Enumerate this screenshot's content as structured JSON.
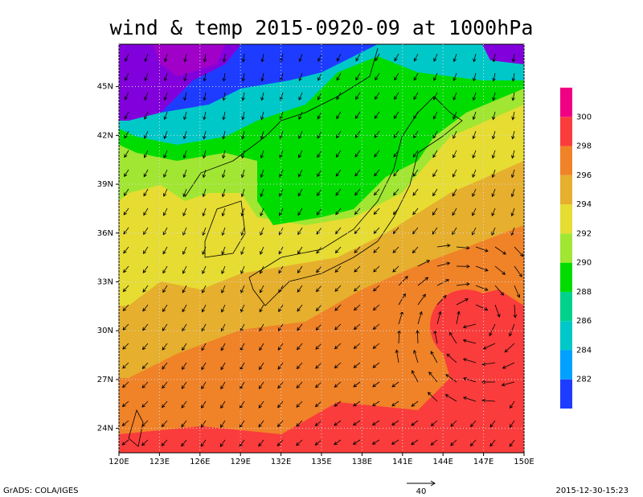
{
  "chart_data": {
    "type": "map",
    "title": "wind & temp 2015-0920-09 at 1000hPa",
    "xlim": [
      120,
      150
    ],
    "xticks": [
      {
        "value": 120,
        "label": "120E"
      },
      {
        "value": 123,
        "label": "123E"
      },
      {
        "value": 126,
        "label": "126E"
      },
      {
        "value": 129,
        "label": "129E"
      },
      {
        "value": 132,
        "label": "132E"
      },
      {
        "value": 135,
        "label": "135E"
      },
      {
        "value": 138,
        "label": "138E"
      },
      {
        "value": 141,
        "label": "141E"
      },
      {
        "value": 144,
        "label": "144E"
      },
      {
        "value": 147,
        "label": "147E"
      },
      {
        "value": 150,
        "label": "150E"
      }
    ],
    "ylim": [
      22.5,
      47.6
    ],
    "yticks": [
      {
        "value": 24,
        "label": "24N"
      },
      {
        "value": 27,
        "label": "27N"
      },
      {
        "value": 30,
        "label": "30N"
      },
      {
        "value": 33,
        "label": "33N"
      },
      {
        "value": 36,
        "label": "36N"
      },
      {
        "value": 39,
        "label": "39N"
      },
      {
        "value": 42,
        "label": "42N"
      },
      {
        "value": 45,
        "label": "45N"
      }
    ],
    "grid": true,
    "colorbar": {
      "levels": [
        282,
        284,
        286,
        288,
        290,
        292,
        294,
        296,
        298,
        300
      ],
      "colors": [
        "#a000c8",
        "#8200dc",
        "#1e3cff",
        "#00a0ff",
        "#00c8c8",
        "#00d28c",
        "#00dc00",
        "#a0e632",
        "#e6dc32",
        "#e6af2d",
        "#f08228",
        "#fa3c3c",
        "#f00082"
      ]
    },
    "reference_vector": 40,
    "footer_left": "GrADS: COLA/IGES",
    "footer_right": "2015-12-30-15:23"
  }
}
